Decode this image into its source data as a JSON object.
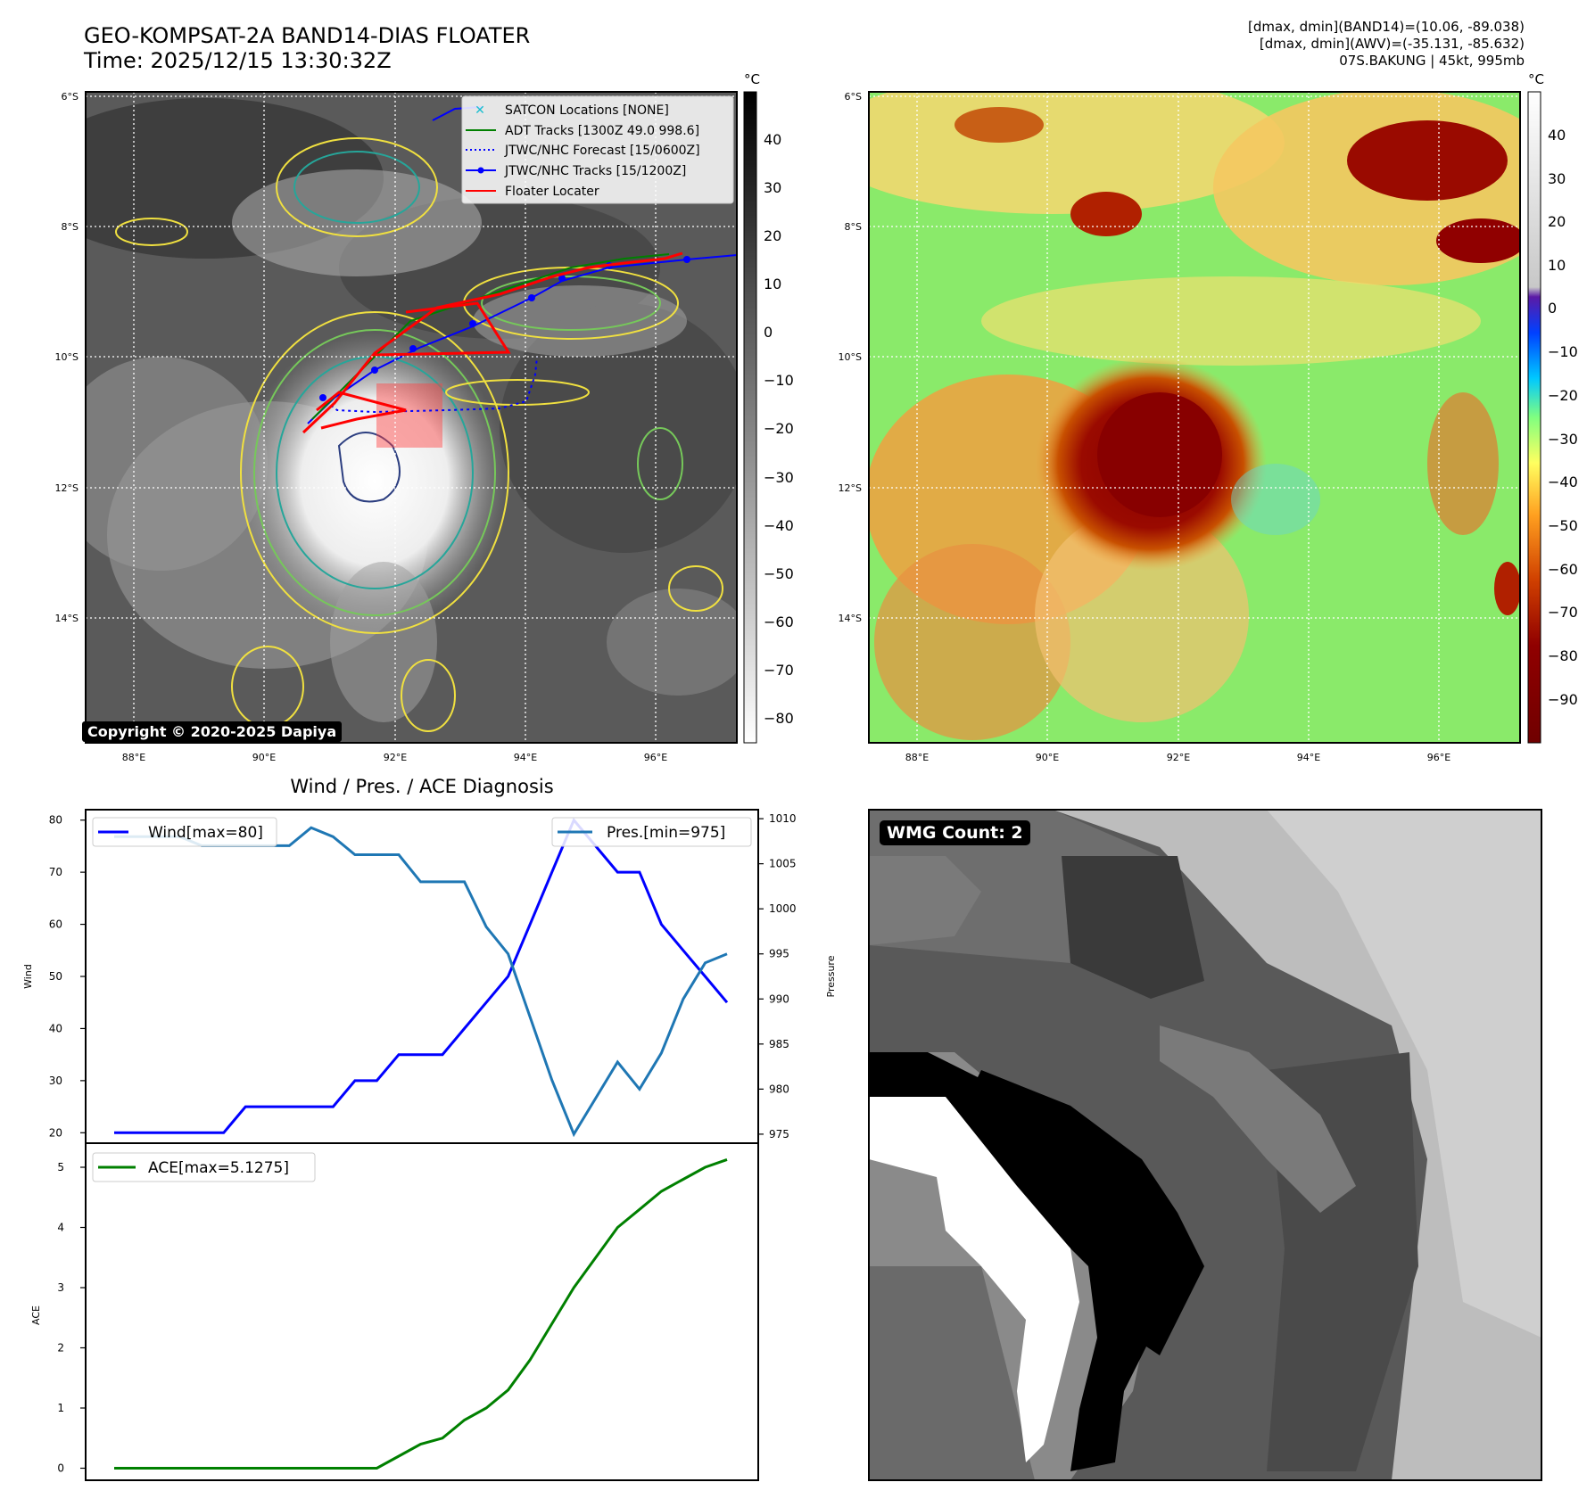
{
  "header": {
    "title": "GEO-KOMPSAT-2A BAND14-DIAS FLOATER",
    "time": "Time: 2025/12/15 13:30:32Z",
    "info_band14": "[dmax, dmin](BAND14)=(10.06, -89.038)",
    "info_awv": "[dmax, dmin](AWV)=(-35.131, -85.632)",
    "storm": "07S.BAKUNG | 45kt, 995mb"
  },
  "copyright": "Copyright © 2020-2025 Dapiya",
  "map_ir": {
    "lat_labels": [
      "6°S",
      "8°S",
      "10°S",
      "12°S",
      "14°S"
    ],
    "lon_labels": [
      "88°E",
      "90°E",
      "92°E",
      "94°E",
      "96°E"
    ],
    "unit": "°C",
    "colorbar_ticks": [
      "40",
      "30",
      "20",
      "10",
      "0",
      "−10",
      "−20",
      "−30",
      "−40",
      "−50",
      "−60",
      "−70",
      "−80"
    ],
    "colormap": "greys",
    "legend": [
      {
        "label": "SATCON Locations [NONE]",
        "color": "#17becf",
        "style": "x-marker"
      },
      {
        "label": "ADT Tracks [1300Z 49.0 998.6]",
        "color": "#008000",
        "style": "solid"
      },
      {
        "label": "JTWC/NHC Forecast [15/0600Z]",
        "color": "#0000ff",
        "style": "dotted"
      },
      {
        "label": "JTWC/NHC Tracks [15/1200Z]",
        "color": "#0000ff",
        "style": "solid-dot"
      },
      {
        "label": "Floater Locater",
        "color": "#ff0000",
        "style": "solid"
      }
    ]
  },
  "map_awv": {
    "lat_labels": [
      "6°S",
      "8°S",
      "10°S",
      "12°S",
      "14°S"
    ],
    "lon_labels": [
      "88°E",
      "90°E",
      "92°E",
      "94°E",
      "96°E"
    ],
    "unit": "°C",
    "colorbar_ticks": [
      "40",
      "30",
      "20",
      "10",
      "0",
      "−10",
      "−20",
      "−30",
      "−40",
      "−50",
      "−60",
      "−70",
      "−80",
      "−90"
    ],
    "colormap": "rainbow-dark-red"
  },
  "diag": {
    "title": "Wind / Pres. / ACE Diagnosis",
    "wind_ylabel": "Wind",
    "pres_ylabel": "Pressure",
    "ace_ylabel": "ACE",
    "wind_legend": "Wind[max=80]",
    "pres_legend": "Pres.[min=975]",
    "ace_legend": "ACE[max=5.1275]"
  },
  "chart_data": [
    {
      "type": "line",
      "x": [
        0,
        1,
        2,
        3,
        4,
        5,
        6,
        7,
        8,
        9,
        10,
        11,
        12,
        13,
        14,
        15,
        16,
        17,
        18,
        19,
        20,
        21,
        22,
        23,
        24,
        25,
        26,
        27,
        28
      ],
      "series": [
        {
          "name": "Wind[max=80]",
          "axis": "left",
          "color": "#0000ff",
          "values": [
            20,
            20,
            20,
            20,
            20,
            20,
            25,
            25,
            25,
            25,
            25,
            30,
            30,
            35,
            35,
            35,
            40,
            45,
            50,
            60,
            70,
            80,
            75,
            70,
            70,
            60,
            55,
            50,
            45
          ]
        },
        {
          "name": "Pres.[min=975]",
          "axis": "right",
          "color": "#1f77b4",
          "values": [
            1008,
            1008,
            1008,
            1008,
            1007,
            1007,
            1007,
            1007,
            1007,
            1009,
            1008,
            1006,
            1006,
            1006,
            1003,
            1003,
            1003,
            998,
            995,
            988,
            981,
            975,
            979,
            983,
            980,
            984,
            990,
            994,
            995
          ]
        }
      ],
      "ylabel": "Wind",
      "ylim": [
        18,
        82
      ],
      "y2label": "Pressure",
      "y2lim": [
        974,
        1011
      ],
      "yticks": [
        20,
        30,
        40,
        50,
        60,
        70,
        80
      ],
      "y2ticks": [
        975,
        980,
        985,
        990,
        995,
        1000,
        1005,
        1010
      ]
    },
    {
      "type": "line",
      "x": [
        0,
        1,
        2,
        3,
        4,
        5,
        6,
        7,
        8,
        9,
        10,
        11,
        12,
        13,
        14,
        15,
        16,
        17,
        18,
        19,
        20,
        21,
        22,
        23,
        24,
        25,
        26,
        27,
        28
      ],
      "series": [
        {
          "name": "ACE[max=5.1275]",
          "color": "#008000",
          "values": [
            0,
            0,
            0,
            0,
            0,
            0,
            0,
            0,
            0,
            0,
            0,
            0,
            0,
            0.2,
            0.4,
            0.5,
            0.8,
            1.0,
            1.3,
            1.8,
            2.4,
            3.0,
            3.5,
            4.0,
            4.3,
            4.6,
            4.8,
            5.0,
            5.1275
          ]
        }
      ],
      "ylabel": "ACE",
      "ylim": [
        -0.2,
        5.4
      ],
      "yticks": [
        0,
        1,
        2,
        3,
        4,
        5
      ]
    }
  ],
  "wmg": {
    "badge": "WMG Count: 2"
  }
}
